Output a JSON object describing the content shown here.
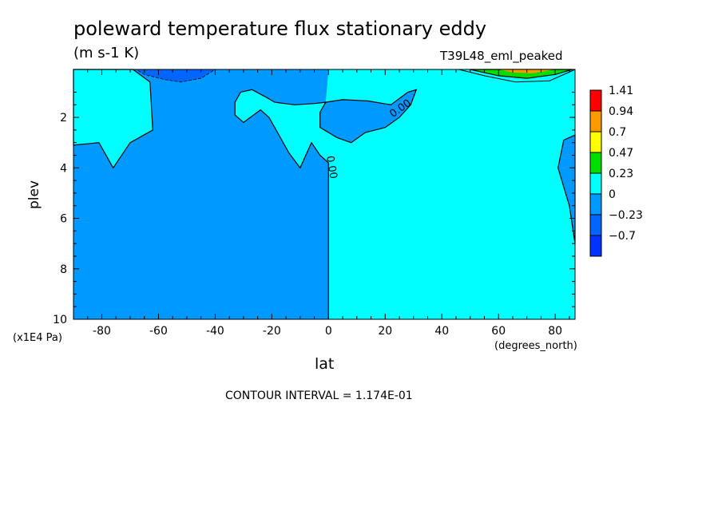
{
  "chart_data": {
    "type": "heatmap",
    "title": "poleward temperature flux stationary eddy",
    "subtitle": "(m s-1 K)",
    "run_label": "T39L48_eml_peaked",
    "xlabel": "lat",
    "x_units": "(degrees_north)",
    "ylabel": "plev",
    "y_units": "(x1E4 Pa)",
    "xlim": [
      -90,
      87
    ],
    "ylim": [
      10,
      0.1
    ],
    "x_ticks": [
      -80,
      -60,
      -40,
      -20,
      0,
      20,
      40,
      60,
      80
    ],
    "y_ticks": [
      2,
      4,
      6,
      8,
      10
    ],
    "contour_interval_text": "CONTOUR INTERVAL = 1.174E-01",
    "contour_labels": [
      {
        "text": "0.00",
        "lat": 0,
        "plev": 4.0
      },
      {
        "text": "0.00",
        "lat": 26,
        "plev": 1.75
      }
    ],
    "colorbar": {
      "levels": [
        "1.41",
        "0.94",
        "0.7",
        "0.47",
        "0.23",
        "0",
        "−0.23",
        "−0.7"
      ],
      "colors": [
        "#ff0000",
        "#ff9900",
        "#ffff00",
        "#00dd00",
        "#00ffff",
        "#0099ff",
        "#0066ff",
        "#0033ff"
      ]
    },
    "regions": [
      {
        "range": "-0.23 to 0",
        "color": "#0099ff",
        "where": "southern hemisphere (-90 to 0), most levels; patches near 30N at 2e4 Pa and near 87N at 3-7e4 Pa"
      },
      {
        "range": "0 to 0.23",
        "color": "#00ffff",
        "where": "northern hemisphere (0 to 87), most levels; upper-level tongues near -85 to -60 and -30 to 0"
      },
      {
        "range": "0.23 to 0.94",
        "color": "#00dd00",
        "where": "upper levels near 55-85N"
      },
      {
        "range": "-0.7 to -0.23",
        "color": "#0066ff",
        "where": "top level near -65 to -45"
      }
    ]
  }
}
